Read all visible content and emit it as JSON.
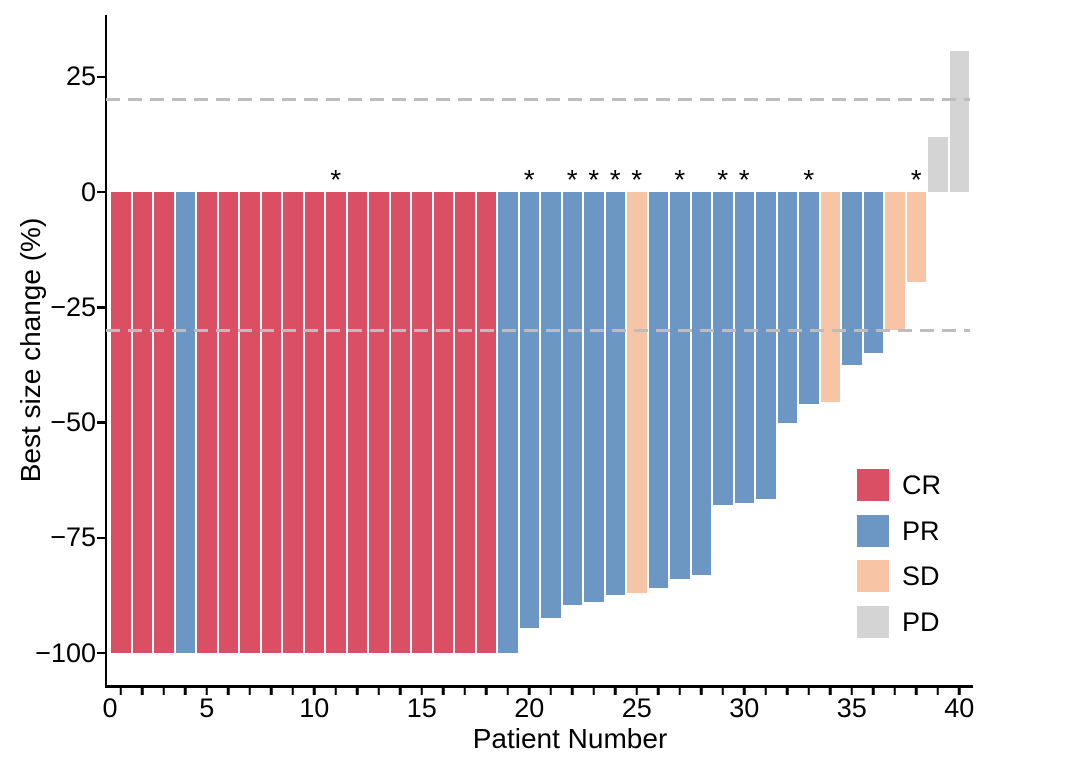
{
  "colors": {
    "CR": "#DA4F64",
    "PR": "#6C96C4",
    "SD": "#F7C4A6",
    "PD": "#D4D4D4",
    "dashed_line": "#BDBDBD",
    "axis": "#000000"
  },
  "chart_data": {
    "type": "bar",
    "title": "",
    "xlabel": "Patient Number",
    "ylabel": "Best size change (%)",
    "xlim": [
      0,
      40
    ],
    "ylim": [
      -107,
      38
    ],
    "grid": false,
    "legend_position": "inside-bottom-right",
    "reference_lines_y": [
      20,
      -30
    ],
    "y_ticks": {
      "values": [
        25,
        0,
        -25,
        -50,
        -75,
        -100
      ],
      "labels": [
        "25",
        "0",
        "−25",
        "−50",
        "−75",
        "−100"
      ]
    },
    "x_ticks": {
      "labeled_values": [
        0,
        5,
        10,
        15,
        20,
        25,
        30,
        35,
        40
      ],
      "labels": [
        "0",
        "5",
        "10",
        "15",
        "20",
        "25",
        "30",
        "35",
        "40"
      ],
      "minor_tick_at_every_patient": true
    },
    "annotation_symbol": "*",
    "legend": {
      "entries": [
        {
          "label": "CR"
        },
        {
          "label": "PR"
        },
        {
          "label": "SD"
        },
        {
          "label": "PD"
        }
      ]
    },
    "patients": [
      {
        "id": 1,
        "response": "CR",
        "value": -100,
        "star": false
      },
      {
        "id": 2,
        "response": "CR",
        "value": -100,
        "star": false
      },
      {
        "id": 3,
        "response": "CR",
        "value": -100,
        "star": false
      },
      {
        "id": 4,
        "response": "PR",
        "value": -100,
        "star": false
      },
      {
        "id": 5,
        "response": "CR",
        "value": -100,
        "star": false
      },
      {
        "id": 6,
        "response": "CR",
        "value": -100,
        "star": false
      },
      {
        "id": 7,
        "response": "CR",
        "value": -100,
        "star": false
      },
      {
        "id": 8,
        "response": "CR",
        "value": -100,
        "star": false
      },
      {
        "id": 9,
        "response": "CR",
        "value": -100,
        "star": false
      },
      {
        "id": 10,
        "response": "CR",
        "value": -100,
        "star": false
      },
      {
        "id": 11,
        "response": "CR",
        "value": -100,
        "star": true
      },
      {
        "id": 12,
        "response": "CR",
        "value": -100,
        "star": false
      },
      {
        "id": 13,
        "response": "CR",
        "value": -100,
        "star": false
      },
      {
        "id": 14,
        "response": "CR",
        "value": -100,
        "star": false
      },
      {
        "id": 15,
        "response": "CR",
        "value": -100,
        "star": false
      },
      {
        "id": 16,
        "response": "CR",
        "value": -100,
        "star": false
      },
      {
        "id": 17,
        "response": "CR",
        "value": -100,
        "star": false
      },
      {
        "id": 18,
        "response": "CR",
        "value": -100,
        "star": false
      },
      {
        "id": 19,
        "response": "PR",
        "value": -100,
        "star": false
      },
      {
        "id": 20,
        "response": "PR",
        "value": -94.5,
        "star": true
      },
      {
        "id": 21,
        "response": "PR",
        "value": -92.5,
        "star": false
      },
      {
        "id": 22,
        "response": "PR",
        "value": -89.5,
        "star": true
      },
      {
        "id": 23,
        "response": "PR",
        "value": -89,
        "star": true
      },
      {
        "id": 24,
        "response": "PR",
        "value": -87.5,
        "star": true
      },
      {
        "id": 25,
        "response": "SD",
        "value": -87,
        "star": true
      },
      {
        "id": 26,
        "response": "PR",
        "value": -86,
        "star": false
      },
      {
        "id": 27,
        "response": "PR",
        "value": -84,
        "star": true
      },
      {
        "id": 28,
        "response": "PR",
        "value": -83,
        "star": false
      },
      {
        "id": 29,
        "response": "PR",
        "value": -68,
        "star": true
      },
      {
        "id": 30,
        "response": "PR",
        "value": -67.5,
        "star": true
      },
      {
        "id": 31,
        "response": "PR",
        "value": -66.5,
        "star": false
      },
      {
        "id": 32,
        "response": "PR",
        "value": -50,
        "star": false
      },
      {
        "id": 33,
        "response": "PR",
        "value": -46,
        "star": true
      },
      {
        "id": 34,
        "response": "SD",
        "value": -45.5,
        "star": false
      },
      {
        "id": 35,
        "response": "PR",
        "value": -37.5,
        "star": false
      },
      {
        "id": 36,
        "response": "PR",
        "value": -35,
        "star": false
      },
      {
        "id": 37,
        "response": "SD",
        "value": -30,
        "star": false
      },
      {
        "id": 38,
        "response": "SD",
        "value": -19.5,
        "star": true
      },
      {
        "id": 39,
        "response": "PD",
        "value": 12,
        "star": false
      },
      {
        "id": 40,
        "response": "PD",
        "value": 30.5,
        "star": false
      }
    ]
  }
}
